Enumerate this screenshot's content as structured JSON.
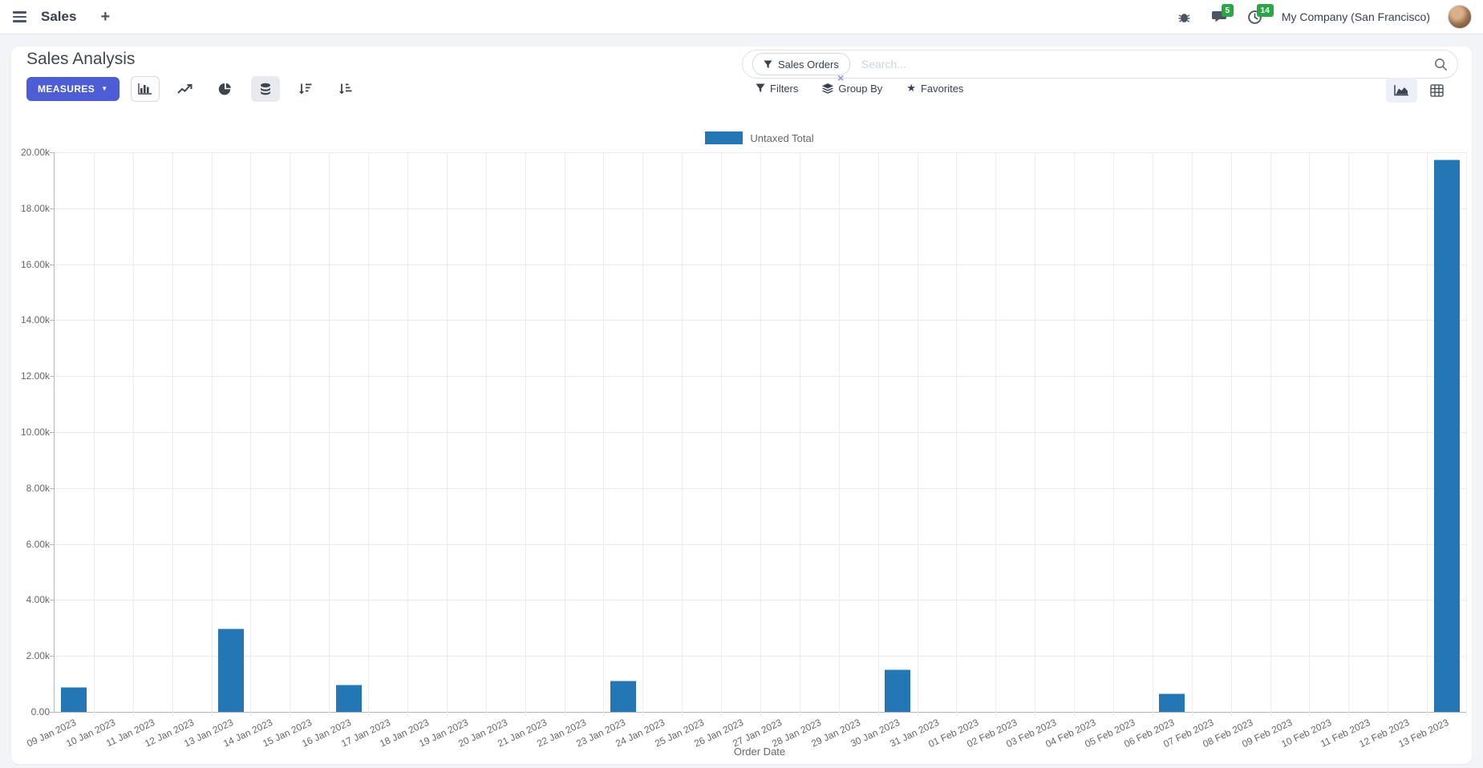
{
  "navbar": {
    "app_label": "Sales",
    "plus_label": "+",
    "message_badge": "5",
    "activity_badge": "14",
    "company": "My Company (San Francisco)"
  },
  "control_panel": {
    "title": "Sales Analysis",
    "measures_label": "MEASURES",
    "search": {
      "facet_label": "Sales Orders",
      "placeholder": "Search...",
      "facet_remove_glyph": "×"
    },
    "filters_label": "Filters",
    "group_by_label": "Group By",
    "favorites_label": "Favorites"
  },
  "icons": {
    "caret_down": "▼",
    "star": "★",
    "close": "×",
    "plus": "+"
  },
  "colors": {
    "accent": "#4d5dd6",
    "bar": "#2277b4",
    "bar_border": "#8fc0e0",
    "badge_green": "#28a745",
    "page_bg": "#f3f4f7",
    "text": "#374151",
    "muted_text": "#666666",
    "gridline": "#ececec",
    "axis": "#b3b3b3"
  },
  "chart_data": {
    "type": "bar",
    "title": "",
    "xlabel": "Order Date",
    "ylabel": "",
    "legend_position": "top",
    "grid": true,
    "ylim": [
      0,
      20000
    ],
    "ytick_step": 2000,
    "ytick_labels": [
      "0.00",
      "2.00k",
      "4.00k",
      "6.00k",
      "8.00k",
      "10.00k",
      "12.00k",
      "14.00k",
      "16.00k",
      "18.00k",
      "20.00k"
    ],
    "categories": [
      "09 Jan 2023",
      "10 Jan 2023",
      "11 Jan 2023",
      "12 Jan 2023",
      "13 Jan 2023",
      "14 Jan 2023",
      "15 Jan 2023",
      "16 Jan 2023",
      "17 Jan 2023",
      "18 Jan 2023",
      "19 Jan 2023",
      "20 Jan 2023",
      "21 Jan 2023",
      "22 Jan 2023",
      "23 Jan 2023",
      "24 Jan 2023",
      "25 Jan 2023",
      "26 Jan 2023",
      "27 Jan 2023",
      "28 Jan 2023",
      "29 Jan 2023",
      "30 Jan 2023",
      "31 Jan 2023",
      "01 Feb 2023",
      "02 Feb 2023",
      "03 Feb 2023",
      "04 Feb 2023",
      "05 Feb 2023",
      "06 Feb 2023",
      "07 Feb 2023",
      "08 Feb 2023",
      "09 Feb 2023",
      "10 Feb 2023",
      "11 Feb 2023",
      "12 Feb 2023",
      "13 Feb 2023"
    ],
    "series": [
      {
        "name": "Untaxed Total",
        "color": "#2277b4",
        "values": [
          860,
          0,
          0,
          0,
          2950,
          0,
          0,
          950,
          0,
          0,
          0,
          0,
          0,
          0,
          1100,
          0,
          0,
          0,
          0,
          0,
          0,
          1500,
          0,
          0,
          0,
          0,
          0,
          0,
          640,
          0,
          0,
          0,
          0,
          0,
          0,
          19700
        ]
      }
    ]
  }
}
